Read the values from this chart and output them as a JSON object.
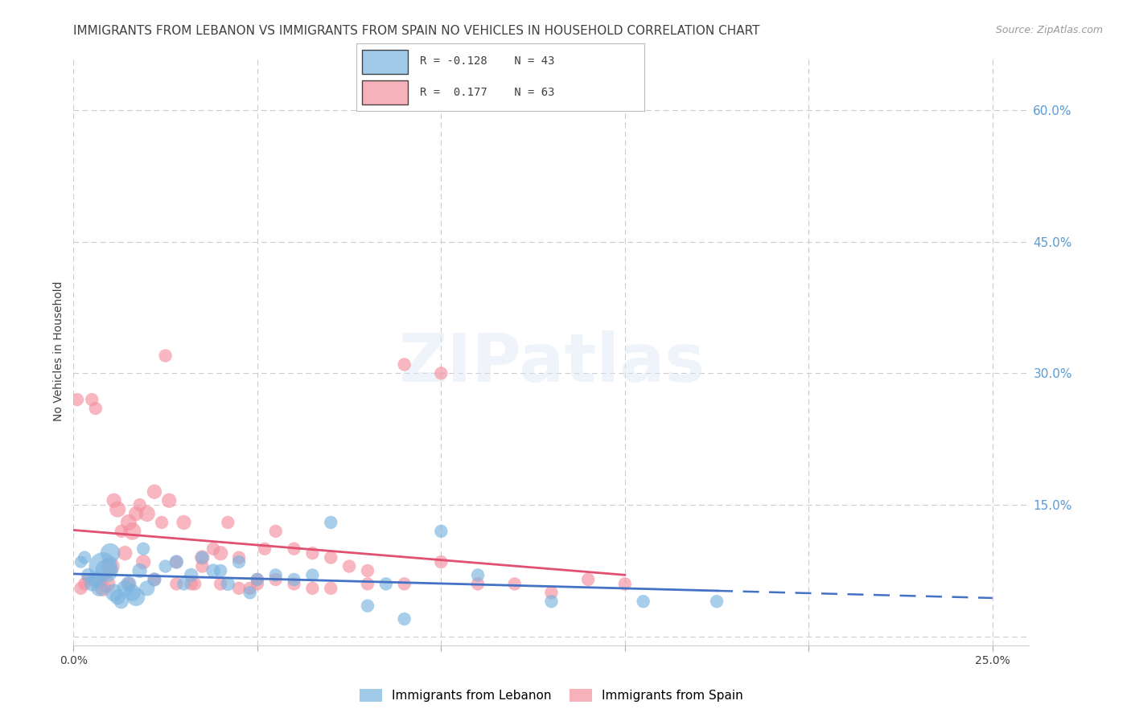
{
  "title": "IMMIGRANTS FROM LEBANON VS IMMIGRANTS FROM SPAIN NO VEHICLES IN HOUSEHOLD CORRELATION CHART",
  "source": "Source: ZipAtlas.com",
  "ylabel": "No Vehicles in Household",
  "xlim": [
    0.0,
    0.26
  ],
  "ylim": [
    -0.01,
    0.66
  ],
  "ytick_vals": [
    0.0,
    0.15,
    0.3,
    0.45,
    0.6
  ],
  "ytick_labels": [
    "",
    "15.0%",
    "30.0%",
    "45.0%",
    "60.0%"
  ],
  "xtick_vals": [
    0.0,
    0.05,
    0.1,
    0.15,
    0.2,
    0.25
  ],
  "xtick_labels": [
    "0.0%",
    "",
    "",
    "",
    "",
    "25.0%"
  ],
  "lebanon_color": "#7ab4e0",
  "spain_color": "#f4909f",
  "lebanon_line_color": "#4472c4",
  "spain_line_color": "#e05070",
  "lebanon_R": -0.128,
  "lebanon_N": 43,
  "spain_R": 0.177,
  "spain_N": 63,
  "leb_x": [
    0.002,
    0.003,
    0.004,
    0.005,
    0.006,
    0.007,
    0.008,
    0.009,
    0.01,
    0.011,
    0.012,
    0.013,
    0.014,
    0.015,
    0.016,
    0.017,
    0.018,
    0.019,
    0.02,
    0.022,
    0.025,
    0.028,
    0.03,
    0.032,
    0.035,
    0.038,
    0.04,
    0.042,
    0.045,
    0.048,
    0.05,
    0.055,
    0.06,
    0.065,
    0.07,
    0.08,
    0.085,
    0.09,
    0.1,
    0.11,
    0.13,
    0.155,
    0.175
  ],
  "leb_y": [
    0.085,
    0.09,
    0.07,
    0.06,
    0.065,
    0.055,
    0.08,
    0.075,
    0.095,
    0.05,
    0.045,
    0.04,
    0.055,
    0.06,
    0.05,
    0.045,
    0.075,
    0.1,
    0.055,
    0.065,
    0.08,
    0.085,
    0.06,
    0.07,
    0.09,
    0.075,
    0.075,
    0.06,
    0.085,
    0.05,
    0.065,
    0.07,
    0.065,
    0.07,
    0.13,
    0.035,
    0.06,
    0.02,
    0.12,
    0.07,
    0.04,
    0.04,
    0.04
  ],
  "leb_s": [
    35,
    40,
    45,
    50,
    55,
    60,
    180,
    120,
    90,
    70,
    55,
    50,
    60,
    55,
    65,
    75,
    50,
    40,
    55,
    45,
    40,
    45,
    40,
    45,
    40,
    45,
    40,
    45,
    40,
    40,
    40,
    40,
    40,
    40,
    40,
    40,
    40,
    40,
    40,
    40,
    40,
    40,
    40
  ],
  "spa_x": [
    0.001,
    0.002,
    0.003,
    0.004,
    0.005,
    0.006,
    0.007,
    0.008,
    0.009,
    0.01,
    0.011,
    0.012,
    0.013,
    0.014,
    0.015,
    0.016,
    0.017,
    0.018,
    0.019,
    0.02,
    0.022,
    0.024,
    0.026,
    0.028,
    0.03,
    0.032,
    0.035,
    0.038,
    0.04,
    0.042,
    0.045,
    0.048,
    0.05,
    0.055,
    0.06,
    0.065,
    0.07,
    0.08,
    0.09,
    0.1,
    0.11,
    0.12,
    0.13,
    0.14,
    0.15,
    0.035,
    0.028,
    0.025,
    0.052,
    0.06,
    0.09,
    0.1,
    0.055,
    0.04,
    0.065,
    0.07,
    0.075,
    0.08,
    0.045,
    0.05,
    0.022,
    0.033,
    0.015
  ],
  "spa_y": [
    0.27,
    0.055,
    0.06,
    0.065,
    0.27,
    0.26,
    0.065,
    0.055,
    0.06,
    0.08,
    0.155,
    0.145,
    0.12,
    0.095,
    0.13,
    0.12,
    0.14,
    0.15,
    0.085,
    0.14,
    0.165,
    0.13,
    0.155,
    0.085,
    0.13,
    0.06,
    0.09,
    0.1,
    0.095,
    0.13,
    0.09,
    0.055,
    0.06,
    0.12,
    0.1,
    0.095,
    0.09,
    0.075,
    0.06,
    0.085,
    0.06,
    0.06,
    0.05,
    0.065,
    0.06,
    0.08,
    0.06,
    0.32,
    0.1,
    0.06,
    0.31,
    0.3,
    0.065,
    0.06,
    0.055,
    0.055,
    0.08,
    0.06,
    0.055,
    0.065,
    0.065,
    0.06,
    0.06
  ],
  "spa_s": [
    40,
    40,
    40,
    40,
    40,
    40,
    50,
    60,
    70,
    80,
    50,
    60,
    40,
    50,
    60,
    70,
    50,
    40,
    50,
    60,
    50,
    40,
    50,
    40,
    50,
    40,
    50,
    40,
    50,
    40,
    40,
    40,
    40,
    40,
    40,
    40,
    40,
    40,
    40,
    40,
    40,
    40,
    40,
    40,
    40,
    40,
    40,
    40,
    40,
    40,
    40,
    40,
    40,
    40,
    40,
    40,
    40,
    40,
    40,
    40,
    40,
    40,
    40
  ],
  "watermark": "ZIPatlas",
  "bg_color": "#ffffff",
  "grid_color": "#cccccc",
  "right_axis_color": "#5b9bd5",
  "title_color": "#404040",
  "title_fontsize": 11,
  "legend_text_color": "#404040"
}
